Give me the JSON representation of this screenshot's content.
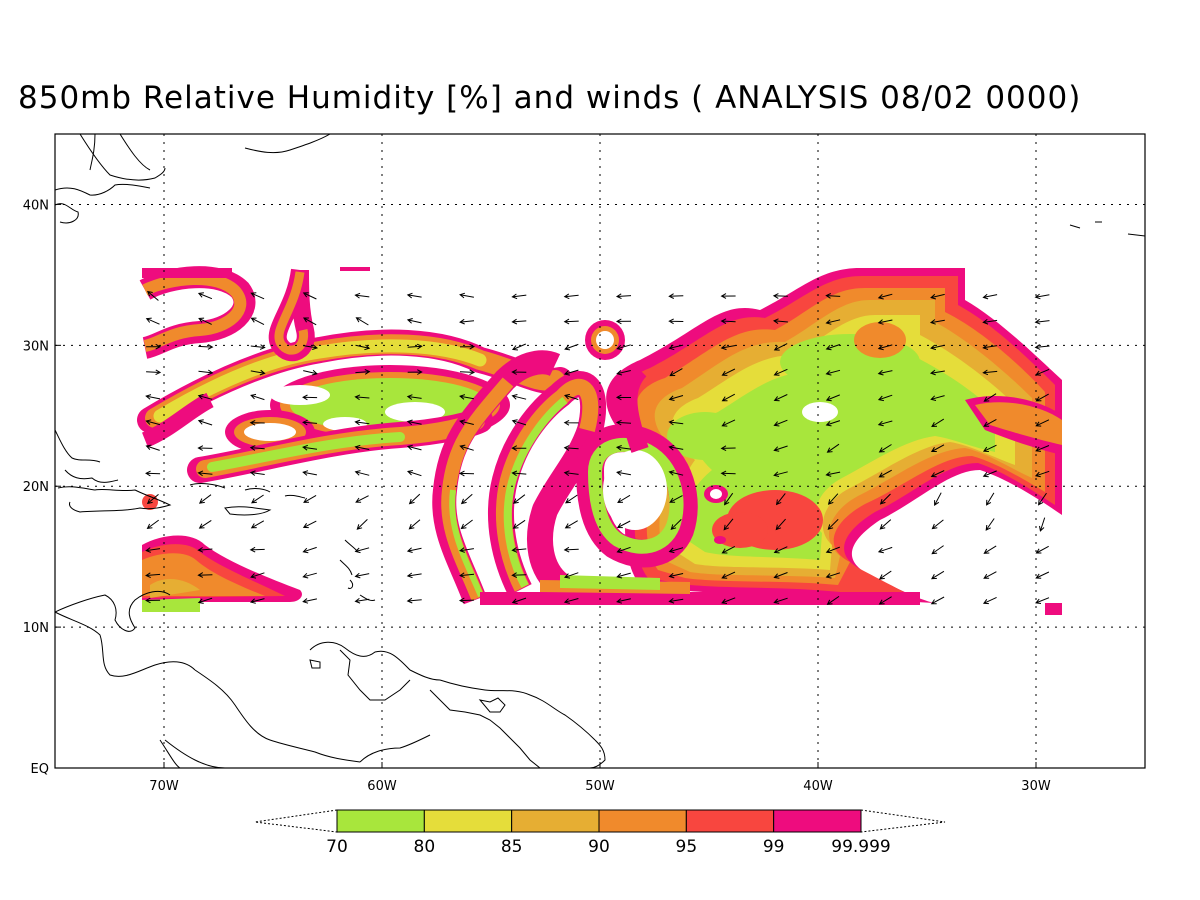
{
  "title": "850mb Relative Humidity [%] and winds ( ANALYSIS 08/02 0000)",
  "map": {
    "projection": "lat-lon",
    "lon_range": [
      -75,
      -25
    ],
    "lat_range": [
      0,
      45
    ],
    "grid": "dotted",
    "lat_labels": [
      {
        "label": "EQ",
        "lat": 0
      },
      {
        "label": "10N",
        "lat": 10
      },
      {
        "label": "20N",
        "lat": 20
      },
      {
        "label": "30N",
        "lat": 30
      },
      {
        "label": "40N",
        "lat": 40
      }
    ],
    "lon_labels": [
      {
        "label": "70W",
        "lon": -70
      },
      {
        "label": "60W",
        "lon": -60
      },
      {
        "label": "50W",
        "lon": -50
      },
      {
        "label": "40W",
        "lon": -40
      },
      {
        "label": "30W",
        "lon": -30
      }
    ]
  },
  "colorbar": {
    "levels": [
      "70",
      "80",
      "85",
      "90",
      "95",
      "99",
      "99.999"
    ],
    "colors": [
      "#a8e63c",
      "#e5dd3a",
      "#e6ae33",
      "#f08a2c",
      "#f8463f",
      "#ee0c7e"
    ]
  }
}
